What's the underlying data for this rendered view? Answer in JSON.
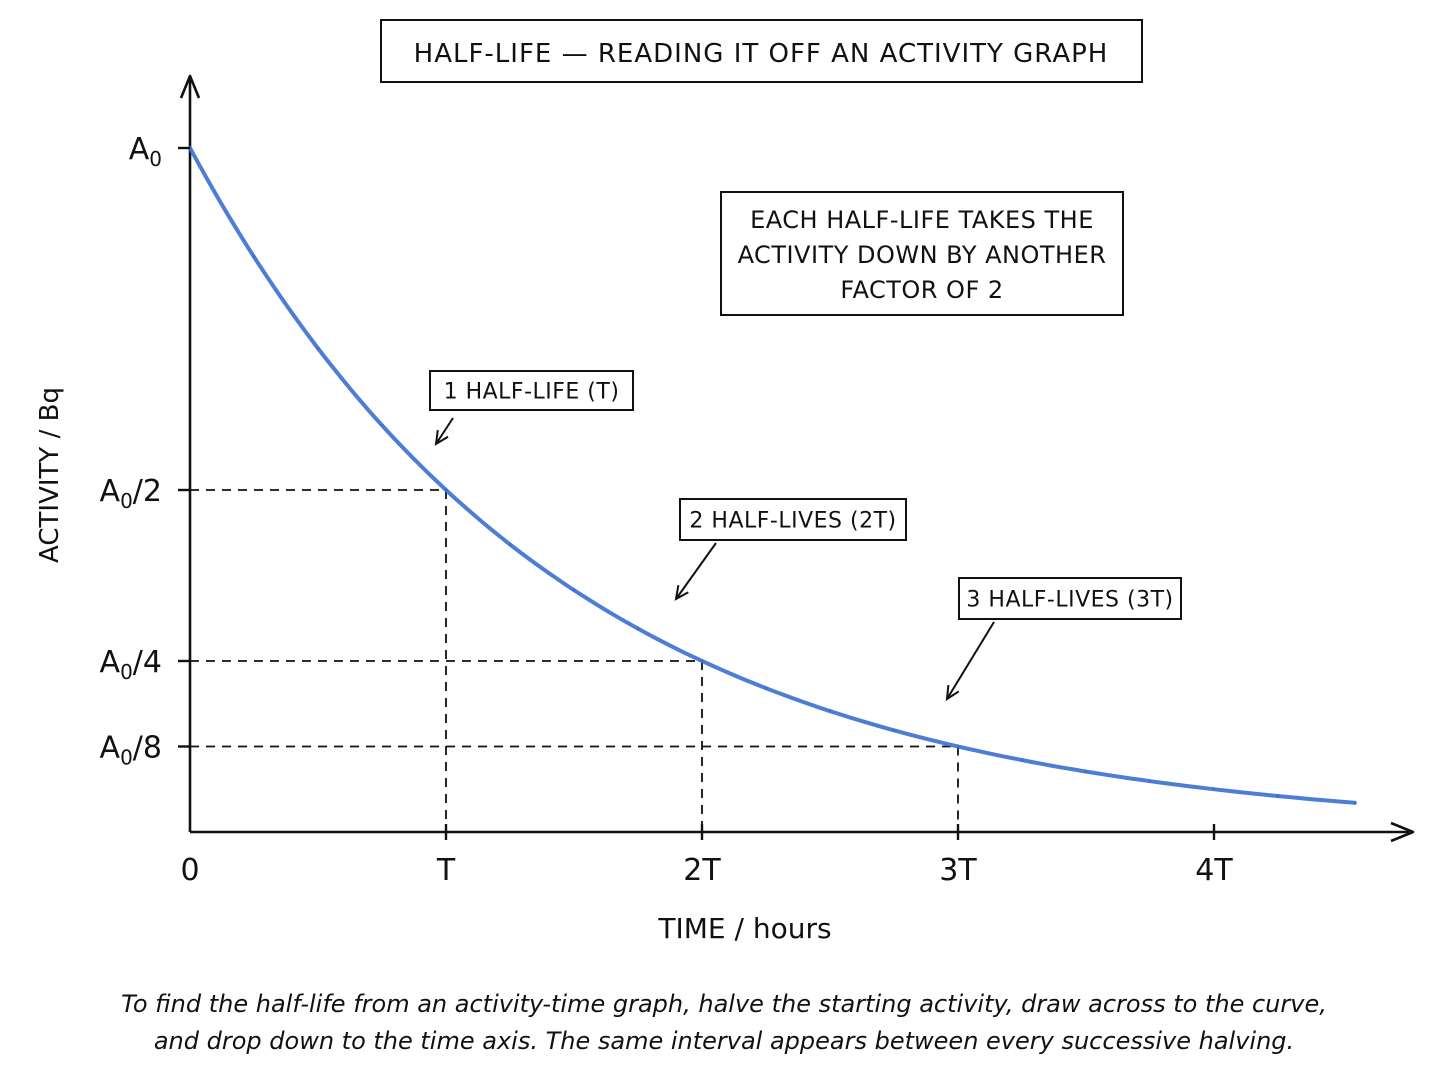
{
  "chart_data": {
    "type": "line",
    "title": "HALF-LIFE — READING IT OFF AN ACTIVITY GRAPH",
    "xlabel": "TIME / hours",
    "ylabel": "ACTIVITY / Bq",
    "x_ticks": [
      "0",
      "T",
      "2T",
      "3T",
      "4T"
    ],
    "x_tick_values": [
      0,
      1,
      2,
      3,
      4
    ],
    "y_tick_labels": [
      {
        "base": "A",
        "sub": "0",
        "rest": "",
        "value": 1
      },
      {
        "base": "A",
        "sub": "0",
        "rest": "/2",
        "value": 0.5
      },
      {
        "base": "A",
        "sub": "0",
        "rest": "/4",
        "value": 0.25
      },
      {
        "base": "A",
        "sub": "0",
        "rest": "/8",
        "value": 0.125
      }
    ],
    "xlim": [
      0,
      4.55
    ],
    "ylim": [
      0,
      1
    ],
    "x_units": "half-lives (T)",
    "y_units": "fraction of A0",
    "grid": false,
    "series": [
      {
        "color": "#3a6fd0",
        "x": [
          0,
          0.25,
          0.5,
          0.75,
          1,
          1.25,
          1.5,
          1.75,
          2,
          2.25,
          2.5,
          2.75,
          3,
          3.25,
          3.5,
          3.75,
          4,
          4.25,
          4.55
        ],
        "y": [
          1,
          0.841,
          0.707,
          0.595,
          0.5,
          0.42,
          0.354,
          0.297,
          0.25,
          0.21,
          0.177,
          0.149,
          0.125,
          0.105,
          0.088,
          0.074,
          0.063,
          0.053,
          0.042
        ]
      }
    ],
    "guides": [
      {
        "x": 1,
        "y": 0.5
      },
      {
        "x": 2,
        "y": 0.25
      },
      {
        "x": 3,
        "y": 0.125
      }
    ],
    "annotations": [
      {
        "text": "1 HALF-LIFE (T)",
        "x": 1,
        "y": 0.5
      },
      {
        "text": "2 HALF-LIVES (2T)",
        "x": 2,
        "y": 0.25
      },
      {
        "text": "3 HALF-LIVES (3T)",
        "x": 3,
        "y": 0.125
      }
    ],
    "note": [
      "EACH HALF-LIFE TAKES THE",
      "ACTIVITY DOWN BY ANOTHER",
      "FACTOR OF 2"
    ]
  },
  "caption": [
    "To find the half-life from an activity-time graph, halve the starting activity, draw across to the curve,",
    "and drop down to the time axis. The same interval appears between every successive halving."
  ]
}
